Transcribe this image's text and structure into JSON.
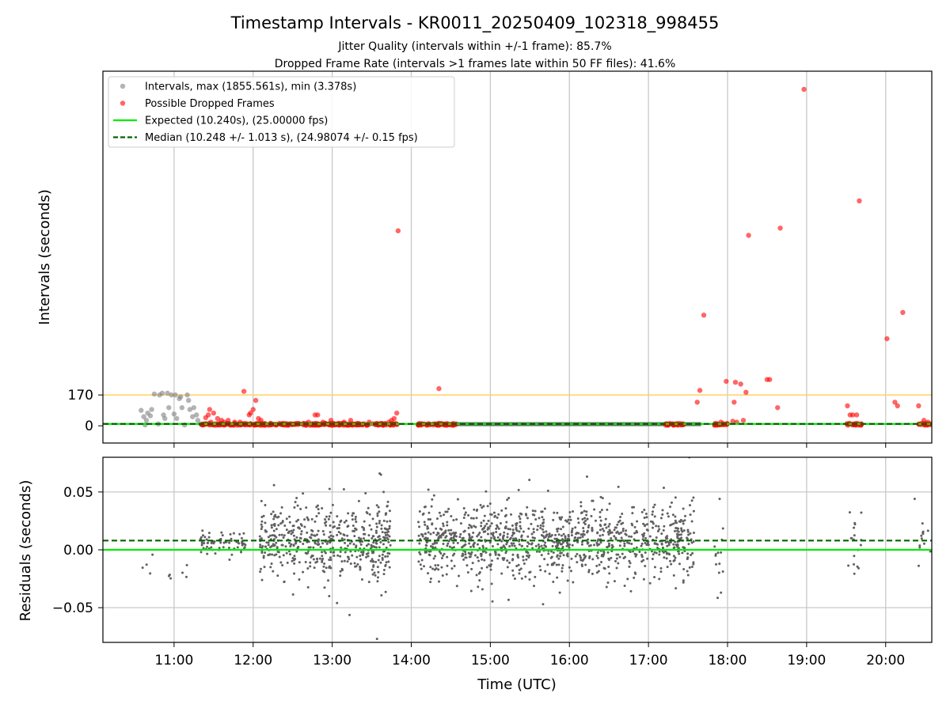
{
  "chart_data": [
    {
      "type": "scatter",
      "title": "Timestamp Intervals - KR0011_20250409_102318_998455",
      "subtitle_lines": [
        "Jitter Quality (intervals within +/-1 frame): 85.7%",
        "Dropped Frame Rate (intervals >1 frames late within 50 FF files): 41.6%"
      ],
      "ylabel": "Intervals (seconds)",
      "x_ticks": [
        "11:00",
        "12:00",
        "13:00",
        "14:00",
        "15:00",
        "16:00",
        "17:00",
        "18:00",
        "19:00",
        "20:00"
      ],
      "x_range": [
        "10:06",
        "20:35"
      ],
      "y_ticks": [
        0,
        170
      ],
      "y_range": [
        -95,
        1955
      ],
      "grid": "x",
      "legend_position": "top-left",
      "legend": [
        "Intervals, max (1855.561s), min (3.378s)",
        "Possible Dropped Frames",
        "Expected (10.240s), (25.00000 fps)",
        "Median (10.248 +/- 1.013 s), (24.98074 +/- 0.15 fps)"
      ],
      "threshold_line": 170,
      "expected": 10.24,
      "median": 10.248,
      "colors": {
        "intervals": "#808080",
        "dropped": "#ff0000",
        "expected": "#00ee00",
        "median": "#006400",
        "threshold": "#ffd060"
      },
      "intervals_points": [
        [
          "10:35",
          85
        ],
        [
          "10:37",
          50
        ],
        [
          "10:38",
          5
        ],
        [
          "10:39",
          30
        ],
        [
          "10:40",
          70
        ],
        [
          "10:42",
          55
        ],
        [
          "10:43",
          90
        ],
        [
          "10:45",
          175
        ],
        [
          "10:48",
          10
        ],
        [
          "10:49",
          170
        ],
        [
          "10:51",
          180
        ],
        [
          "10:52",
          60
        ],
        [
          "10:53",
          40
        ],
        [
          "10:55",
          180
        ],
        [
          "10:56",
          100
        ],
        [
          "10:58",
          170
        ],
        [
          "11:00",
          65
        ],
        [
          "11:01",
          170
        ],
        [
          "11:02",
          40
        ],
        [
          "11:04",
          150
        ],
        [
          "11:05",
          160
        ],
        [
          "11:06",
          100
        ],
        [
          "11:08",
          5
        ],
        [
          "11:10",
          170
        ],
        [
          "11:11",
          140
        ],
        [
          "11:12",
          90
        ],
        [
          "11:14",
          50
        ],
        [
          "11:15",
          100
        ],
        [
          "11:17",
          60
        ],
        [
          "11:18",
          30
        ],
        [
          "11:20",
          10
        ],
        [
          "11:22",
          10
        ]
      ],
      "dropped_points": [
        [
          "11:24",
          45
        ],
        [
          "11:26",
          60
        ],
        [
          "11:27",
          90
        ],
        [
          "11:28",
          20
        ],
        [
          "11:30",
          70
        ],
        [
          "11:33",
          40
        ],
        [
          "11:36",
          30
        ],
        [
          "11:38",
          20
        ],
        [
          "11:41",
          30
        ],
        [
          "11:46",
          20
        ],
        [
          "11:50",
          20
        ],
        [
          "11:53",
          190
        ],
        [
          "11:57",
          60
        ],
        [
          "11:58",
          70
        ],
        [
          "12:00",
          90
        ],
        [
          "12:02",
          140
        ],
        [
          "12:04",
          40
        ],
        [
          "12:06",
          30
        ],
        [
          "12:14",
          10
        ],
        [
          "12:30",
          10
        ],
        [
          "12:42",
          20
        ],
        [
          "12:47",
          60
        ],
        [
          "12:49",
          60
        ],
        [
          "12:53",
          20
        ],
        [
          "12:59",
          30
        ],
        [
          "13:09",
          20
        ],
        [
          "13:14",
          30
        ],
        [
          "13:28",
          20
        ],
        [
          "13:43",
          20
        ],
        [
          "13:45",
          30
        ],
        [
          "13:47",
          40
        ],
        [
          "13:49",
          70
        ],
        [
          "13:50",
          1075
        ],
        [
          "14:21",
          205
        ],
        [
          "17:37",
          130
        ],
        [
          "17:39",
          195
        ],
        [
          "17:42",
          610
        ],
        [
          "17:55",
          20
        ],
        [
          "17:59",
          245
        ],
        [
          "18:04",
          25
        ],
        [
          "18:05",
          130
        ],
        [
          "18:06",
          240
        ],
        [
          "18:07",
          20
        ],
        [
          "18:10",
          230
        ],
        [
          "18:12",
          30
        ],
        [
          "18:14",
          185
        ],
        [
          "18:16",
          1050
        ],
        [
          "18:30",
          255
        ],
        [
          "18:32",
          255
        ],
        [
          "18:38",
          100
        ],
        [
          "18:40",
          1090
        ],
        [
          "18:58",
          1855
        ],
        [
          "19:31",
          110
        ],
        [
          "19:33",
          60
        ],
        [
          "19:35",
          60
        ],
        [
          "19:38",
          60
        ],
        [
          "19:40",
          1240
        ],
        [
          "20:01",
          480
        ],
        [
          "20:07",
          130
        ],
        [
          "20:09",
          110
        ],
        [
          "20:13",
          625
        ],
        [
          "20:25",
          110
        ],
        [
          "20:29",
          30
        ],
        [
          "20:32",
          20
        ]
      ],
      "dropped_dense_clusters": [
        [
          "11:20",
          "13:50"
        ],
        [
          "14:05",
          "14:35"
        ],
        [
          "17:12",
          "17:27"
        ],
        [
          "17:50",
          "18:00"
        ],
        [
          "19:30",
          "19:42"
        ],
        [
          "20:25",
          "20:35"
        ]
      ],
      "dense_band": [
        "14:05",
        "17:40"
      ]
    },
    {
      "type": "scatter",
      "ylabel": "Residuals (seconds)",
      "xlabel": "Time (UTC)",
      "x_ticks": [
        "11:00",
        "12:00",
        "13:00",
        "14:00",
        "15:00",
        "16:00",
        "17:00",
        "18:00",
        "19:00",
        "20:00"
      ],
      "x_range": [
        "10:06",
        "20:35"
      ],
      "y_ticks": [
        "0.05",
        "0.00",
        "−0.05"
      ],
      "y_range": [
        -0.08,
        0.08
      ],
      "grid": "both",
      "expected_residual": 0.0,
      "median_residual": 0.008,
      "colors": {
        "points": "#606060",
        "expected": "#00ee00",
        "median": "#006400"
      },
      "point_segments": [
        {
          "range": [
            "10:35",
            "11:13"
          ],
          "n": 10,
          "mean": -0.02,
          "sd": 0.006,
          "rand": 0.7
        },
        {
          "range": [
            "11:20",
            "11:55"
          ],
          "n": 70,
          "mean": 0.006,
          "sd": 0.004,
          "rand": 0.15
        },
        {
          "range": [
            "12:05",
            "13:45"
          ],
          "n": 520,
          "mean": 0.008,
          "sd": 0.016,
          "rand": 0
        },
        {
          "range": [
            "14:05",
            "17:35"
          ],
          "n": 1100,
          "mean": 0.007,
          "sd": 0.016,
          "rand": 0
        },
        {
          "range": [
            "17:50",
            "17:58"
          ],
          "n": 12,
          "mean": 0.0,
          "sd": 0.02,
          "rand": 0
        },
        {
          "range": [
            "19:30",
            "19:42"
          ],
          "n": 18,
          "mean": 0.008,
          "sd": 0.012,
          "rand": 0
        },
        {
          "range": [
            "20:25",
            "20:35"
          ],
          "n": 12,
          "mean": 0.012,
          "sd": 0.01,
          "rand": 0
        }
      ],
      "outlier_points": [
        [
          "13:34",
          -0.077
        ],
        [
          "13:36",
          0.066
        ],
        [
          "13:37",
          0.065
        ],
        [
          "13:39",
          0.05
        ],
        [
          "14:13",
          0.052
        ],
        [
          "15:40",
          -0.047
        ],
        [
          "17:31",
          0.08
        ],
        [
          "17:54",
          0.044
        ],
        [
          "17:55",
          -0.037
        ],
        [
          "20:22",
          0.044
        ]
      ]
    }
  ]
}
